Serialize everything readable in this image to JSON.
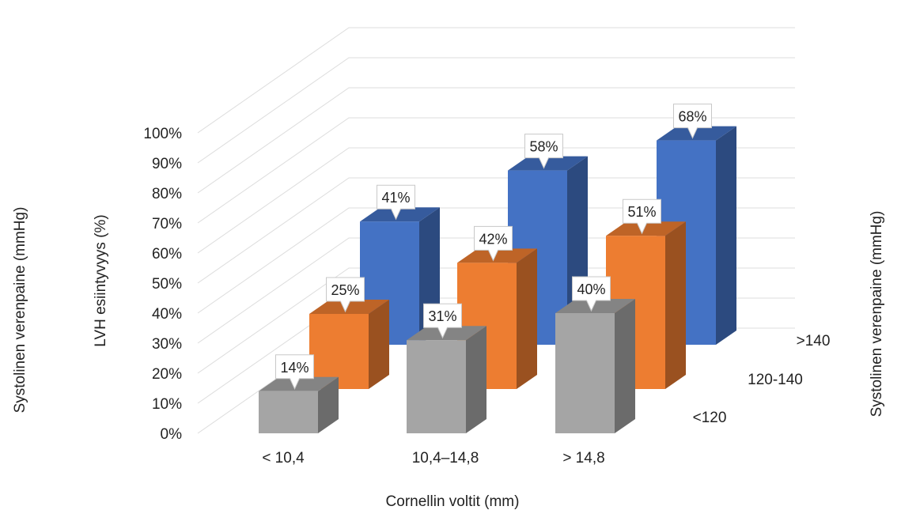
{
  "chart_data": {
    "type": "bar",
    "variant": "3d-column",
    "categories": [
      "< 10,4",
      "10,4–14,8",
      "> 14,8"
    ],
    "series": [
      {
        "name": ">140",
        "values": [
          41,
          58,
          68
        ],
        "color": "#4472c4"
      },
      {
        "name": "120-140",
        "values": [
          25,
          42,
          51
        ],
        "color": "#ed7d31"
      },
      {
        "name": "<120",
        "values": [
          14,
          31,
          40
        ],
        "color": "#a5a5a5"
      }
    ],
    "data_labels": [
      [
        "41%",
        "58%",
        "68%"
      ],
      [
        "25%",
        "42%",
        "51%"
      ],
      [
        "14%",
        "31%",
        "40%"
      ]
    ],
    "y_ticks": [
      "0%",
      "10%",
      "20%",
      "30%",
      "40%",
      "50%",
      "60%",
      "70%",
      "80%",
      "90%",
      "100%"
    ],
    "ylim": [
      0,
      100
    ],
    "xlabel": "Cornellin voltit (mm)",
    "ylabel": "LVH esiintyvyys (%)",
    "zlabel": "Systolinen verenpaine (mmHg)",
    "left_label": "Systolinen verenpaine (mmHg)",
    "grid": true
  }
}
